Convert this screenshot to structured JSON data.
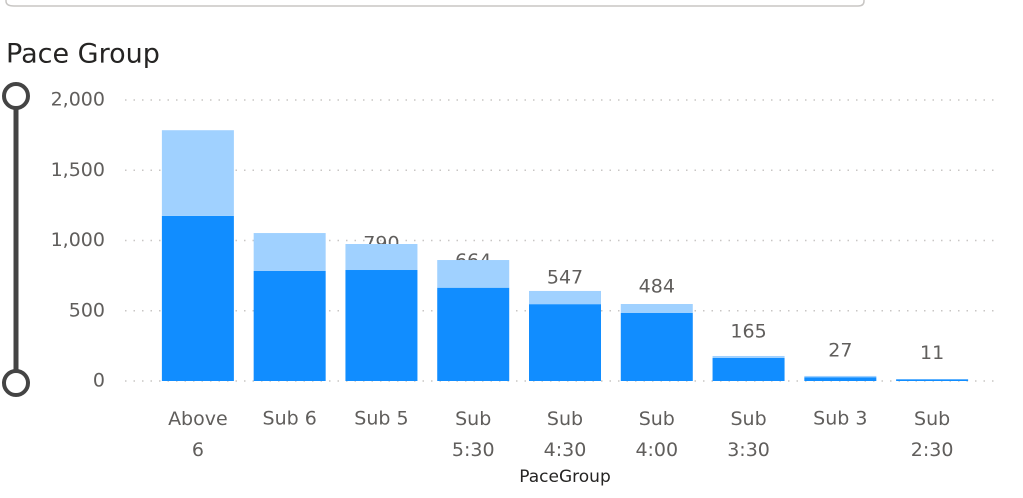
{
  "chart_data": {
    "type": "bar",
    "stacked": true,
    "title": "Pace Group",
    "x_label": "PaceGroup",
    "categories": [
      "Above 6",
      "Sub 6",
      "Sub 5",
      "Sub 5:30",
      "Sub 4:30",
      "Sub 4:00",
      "Sub 3:30",
      "Sub 3",
      "Sub 2:30"
    ],
    "series": [
      {
        "color": "#118DFF",
        "values": [
          1175,
          783,
          790,
          664,
          547,
          484,
          165,
          27,
          11
        ]
      },
      {
        "color": "#A0D1FF",
        "values": [
          610,
          270,
          185,
          197,
          94,
          64,
          13,
          9,
          3
        ]
      }
    ],
    "ylim": [
      0,
      2000
    ],
    "yticks": [
      0,
      500,
      {
        "value": 1000,
        "label": "1,000"
      },
      {
        "value": 1500,
        "label": "1,500"
      },
      {
        "value": 2000,
        "label": "2,000"
      }
    ],
    "grid": true
  }
}
